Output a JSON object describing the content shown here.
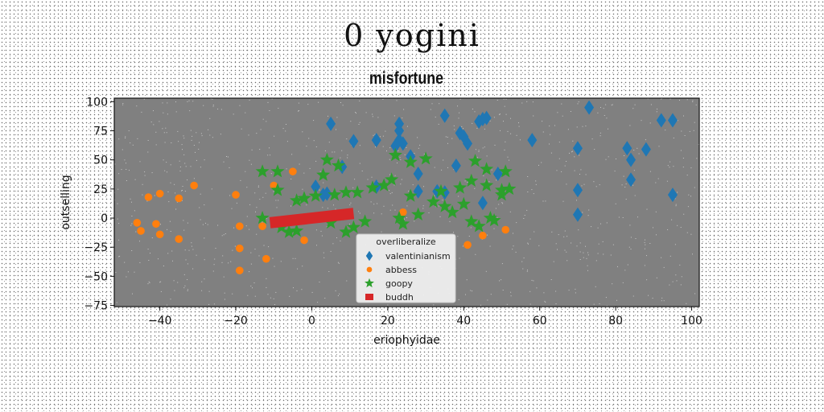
{
  "page": {
    "supertitle": "0 yogini"
  },
  "chart_data": {
    "type": "scatter",
    "title": "misfortune",
    "xlabel": "eriophyidae",
    "ylabel": "outselling",
    "xlim": [
      -52,
      102
    ],
    "ylim": [
      -76,
      103
    ],
    "xticks": [
      -40,
      -20,
      0,
      20,
      40,
      60,
      80,
      100
    ],
    "yticks": [
      -75,
      -50,
      -25,
      0,
      25,
      50,
      75,
      100
    ],
    "grid": false,
    "plot_background": "#808080",
    "legend": {
      "title": "overliberalize",
      "placement": "lower-center"
    },
    "series": [
      {
        "name": "valentinianism",
        "marker": "thin_diamond",
        "color": "#1f77b4",
        "points": [
          [
            5,
            81
          ],
          [
            11,
            66
          ],
          [
            17,
            67
          ],
          [
            22,
            62
          ],
          [
            23,
            67
          ],
          [
            23,
            75
          ],
          [
            23,
            81
          ],
          [
            24,
            64
          ],
          [
            26,
            53
          ],
          [
            28,
            38
          ],
          [
            28,
            23
          ],
          [
            33,
            23
          ],
          [
            35,
            88
          ],
          [
            38,
            45
          ],
          [
            39,
            73
          ],
          [
            40,
            70
          ],
          [
            41,
            64
          ],
          [
            44,
            83
          ],
          [
            45,
            85
          ],
          [
            46,
            86
          ],
          [
            45,
            13
          ],
          [
            49,
            38
          ],
          [
            1,
            27
          ],
          [
            3,
            20
          ],
          [
            4,
            21
          ],
          [
            8,
            44
          ],
          [
            17,
            27
          ],
          [
            35,
            22
          ],
          [
            58,
            67
          ],
          [
            70,
            60
          ],
          [
            70,
            24
          ],
          [
            70,
            3
          ],
          [
            73,
            95
          ],
          [
            83,
            60
          ],
          [
            84,
            50
          ],
          [
            84,
            33
          ],
          [
            88,
            59
          ],
          [
            92,
            84
          ],
          [
            95,
            84
          ],
          [
            95,
            20
          ]
        ]
      },
      {
        "name": "abbess",
        "marker": "o",
        "color": "#ff7f0e",
        "points": [
          [
            -46,
            -4
          ],
          [
            -45,
            -11
          ],
          [
            -43,
            18
          ],
          [
            -40,
            21
          ],
          [
            -41,
            -5
          ],
          [
            -40,
            -14
          ],
          [
            -35,
            17
          ],
          [
            -35,
            -18
          ],
          [
            -31,
            28
          ],
          [
            -20,
            20
          ],
          [
            -19,
            -7
          ],
          [
            -19,
            -26
          ],
          [
            -19,
            -45
          ],
          [
            -13,
            -7
          ],
          [
            -12,
            -35
          ],
          [
            -10,
            28
          ],
          [
            -5,
            40
          ],
          [
            -2,
            -19
          ],
          [
            24,
            5
          ],
          [
            41,
            -23
          ],
          [
            45,
            -15
          ],
          [
            51,
            -10
          ]
        ]
      },
      {
        "name": "goopy",
        "marker": "*",
        "color": "#2ca02c",
        "points": [
          [
            -13,
            40
          ],
          [
            -13,
            0
          ],
          [
            -9,
            40
          ],
          [
            -9,
            24
          ],
          [
            -8,
            -8
          ],
          [
            -6,
            -12
          ],
          [
            -4,
            15
          ],
          [
            -4,
            -11
          ],
          [
            -2,
            17
          ],
          [
            1,
            19
          ],
          [
            3,
            37
          ],
          [
            4,
            50
          ],
          [
            5,
            -4
          ],
          [
            6,
            20
          ],
          [
            7,
            45
          ],
          [
            9,
            22
          ],
          [
            9,
            -12
          ],
          [
            11,
            -8
          ],
          [
            12,
            22
          ],
          [
            14,
            -3
          ],
          [
            16,
            26
          ],
          [
            19,
            28
          ],
          [
            21,
            33
          ],
          [
            22,
            54
          ],
          [
            23,
            0
          ],
          [
            24,
            -5
          ],
          [
            26,
            48
          ],
          [
            26,
            19
          ],
          [
            28,
            3
          ],
          [
            30,
            51
          ],
          [
            32,
            14
          ],
          [
            34,
            23
          ],
          [
            35,
            10
          ],
          [
            37,
            5
          ],
          [
            39,
            26
          ],
          [
            40,
            12
          ],
          [
            42,
            32
          ],
          [
            42,
            -3
          ],
          [
            43,
            49
          ],
          [
            44,
            -7
          ],
          [
            46,
            28
          ],
          [
            46,
            42
          ],
          [
            47,
            0
          ],
          [
            48,
            -2
          ],
          [
            50,
            20
          ],
          [
            50,
            24
          ],
          [
            51,
            40
          ],
          [
            52,
            25
          ]
        ]
      },
      {
        "name": "buddh",
        "marker": "line",
        "color": "#d62728",
        "points": [
          [
            -11,
            -4
          ],
          [
            11,
            4
          ]
        ]
      }
    ]
  }
}
